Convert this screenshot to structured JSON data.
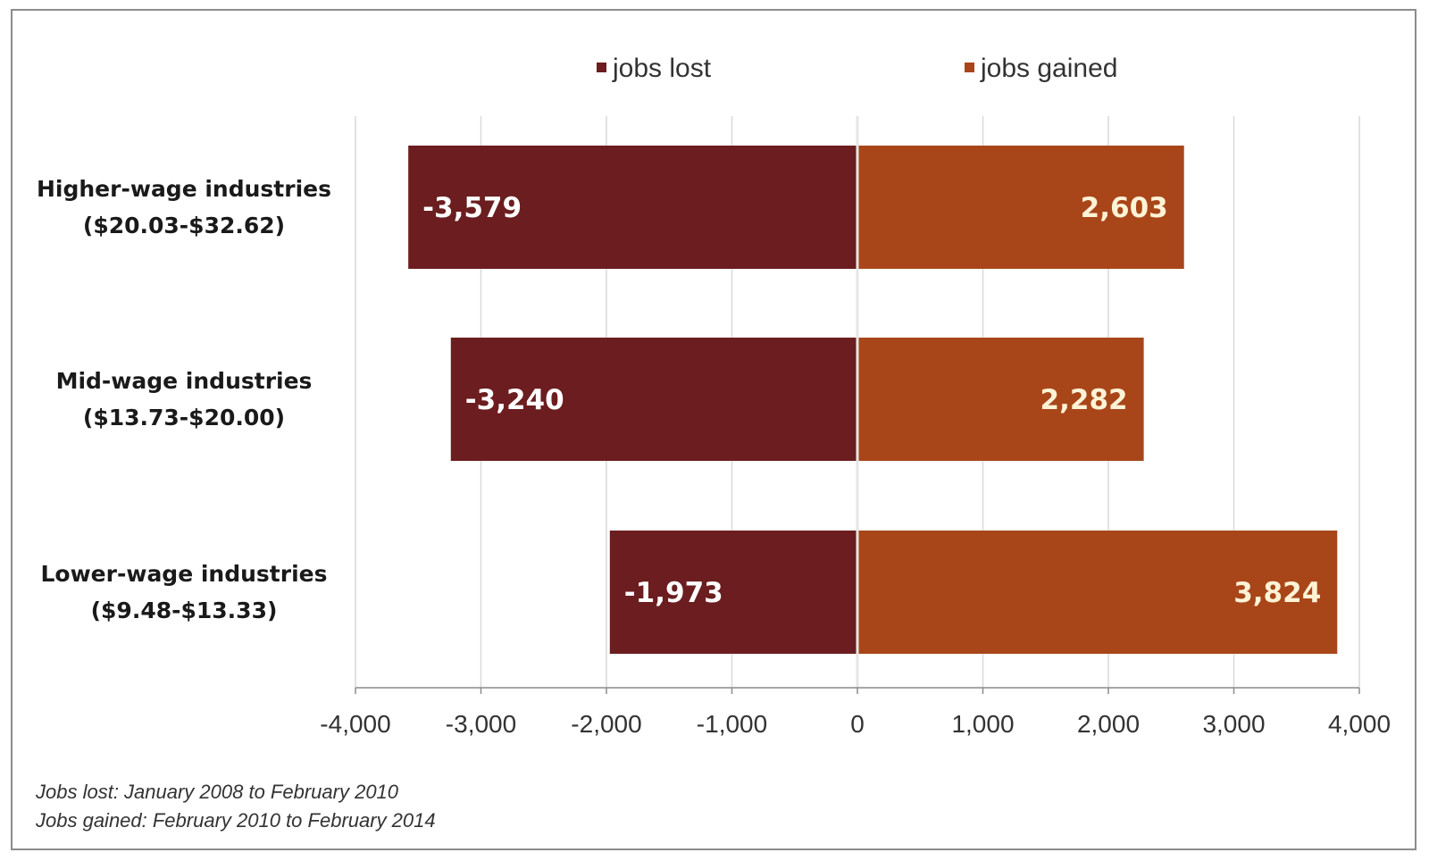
{
  "chart_data": {
    "type": "bar",
    "orientation": "horizontal",
    "stacked": "diverging",
    "categories": [
      [
        "Higher-wage industries",
        "($20.03-$32.62)"
      ],
      [
        "Mid-wage industries",
        "($13.73-$20.00)"
      ],
      [
        "Lower-wage industries",
        "($9.48-$13.33)"
      ]
    ],
    "series": [
      {
        "name": "jobs lost",
        "color": "#6b1d1f",
        "values": [
          -3579,
          -3240,
          -1973
        ],
        "labels": [
          "-3,579",
          "-3,240",
          "-1,973"
        ],
        "label_color": "#ffffff"
      },
      {
        "name": "jobs gained",
        "color": "#a8461a",
        "values": [
          2603,
          2282,
          3824
        ],
        "labels": [
          "2,603",
          "2,282",
          "3,824"
        ],
        "label_color": "#fff3d6"
      }
    ],
    "xlim": [
      -4000,
      4000
    ],
    "xticks": [
      -4000,
      -3000,
      -2000,
      -1000,
      0,
      1000,
      2000,
      3000,
      4000
    ],
    "xtick_labels": [
      "-4,000",
      "-3,000",
      "-2,000",
      "-1,000",
      "0",
      "1,000",
      "2,000",
      "3,000",
      "4,000"
    ],
    "grid": "vertical",
    "legend": "top",
    "annotations": [
      "Jobs lost: January 2008 to February 2010",
      "Jobs gained: February 2010 to February 2014"
    ]
  }
}
